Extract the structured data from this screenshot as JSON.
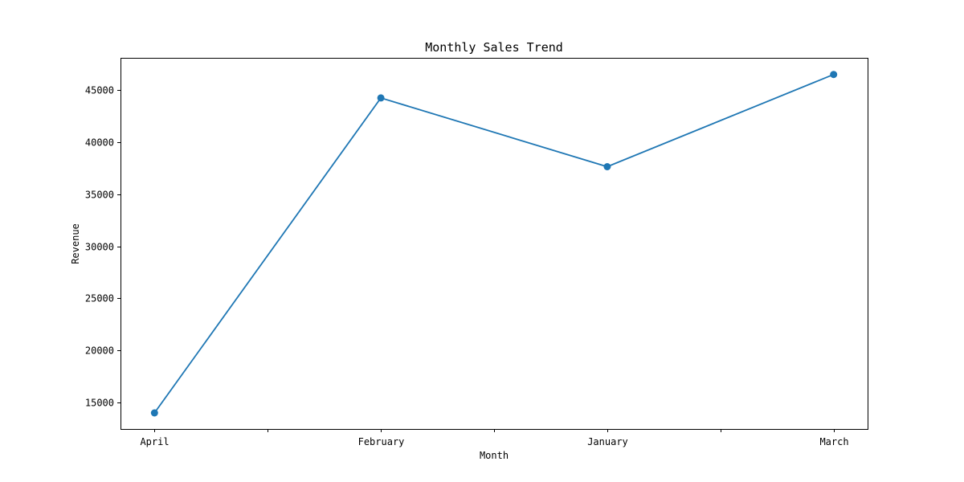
{
  "chart_data": {
    "type": "line",
    "title": "Monthly Sales Trend",
    "xlabel": "Month",
    "ylabel": "Revenue",
    "categories": [
      "April",
      "February",
      "January",
      "March"
    ],
    "x_ticks": [
      0,
      0.5,
      1,
      1.5,
      2,
      2.5,
      3
    ],
    "x_tick_labels": [
      "April",
      "",
      "February",
      "",
      "January",
      "",
      "March"
    ],
    "xlim": [
      -0.15,
      3.15
    ],
    "y_ticks": [
      15000,
      20000,
      25000,
      30000,
      35000,
      40000,
      45000
    ],
    "ylim": [
      12460,
      48100
    ],
    "grid": false,
    "legend": "none",
    "series": [
      {
        "values": [
          14000,
          44250,
          37650,
          46500
        ],
        "color": "#1f77b4",
        "marker": "circle"
      }
    ]
  }
}
